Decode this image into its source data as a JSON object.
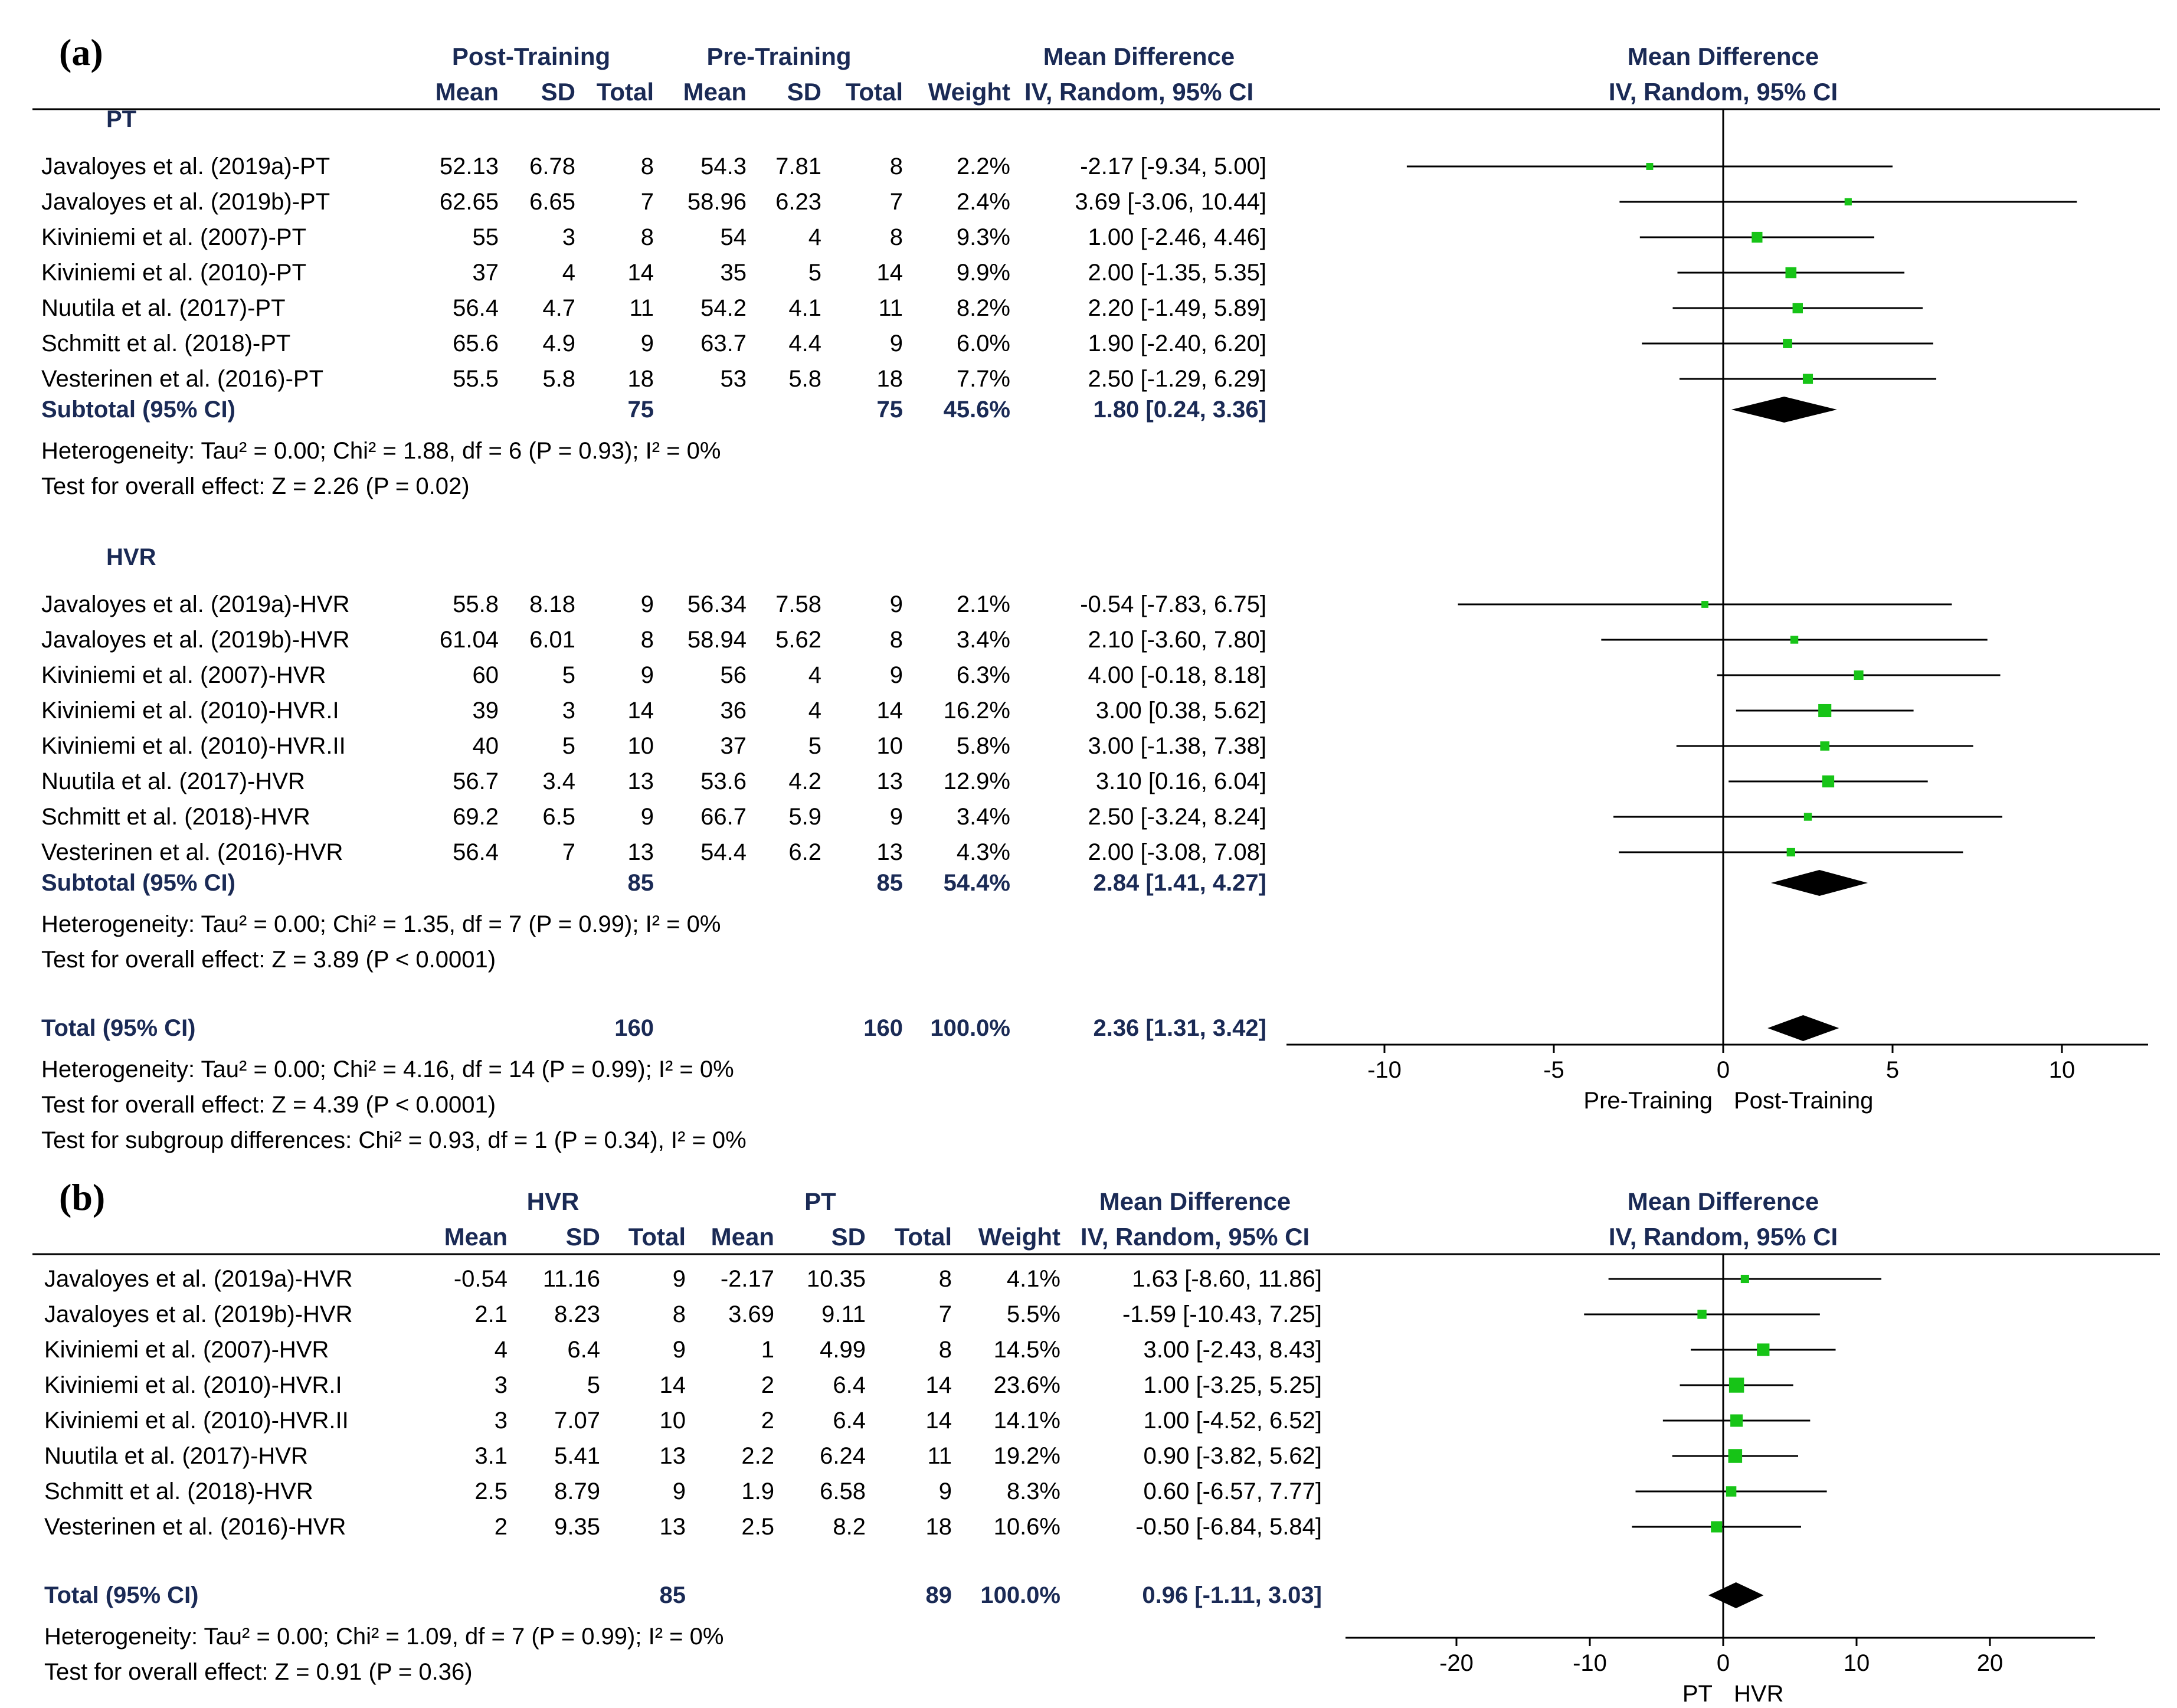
{
  "chart_data": [
    {
      "type": "forest",
      "panel_label": "(a)",
      "header": {
        "group1": "Post-Training",
        "group2": "Pre-Training",
        "col_mean": "Mean",
        "col_sd": "SD",
        "col_total": "Total",
        "col_weight": "Weight",
        "md_title": "Mean Difference",
        "md_method": "IV, Random, 95% CI"
      },
      "groups": [
        {
          "name": "PT",
          "studies": [
            {
              "study": "Javaloyes et al. (2019a)-PT",
              "m1": "52.13",
              "sd1": "6.78",
              "n1": "8",
              "m2": "54.3",
              "sd2": "7.81",
              "n2": "8",
              "weight": "2.2%",
              "ci_text": "-2.17 [-9.34, 5.00]",
              "md": -2.17,
              "lo": -9.34,
              "hi": 5.0,
              "w": 2.2
            },
            {
              "study": "Javaloyes et al. (2019b)-PT",
              "m1": "62.65",
              "sd1": "6.65",
              "n1": "7",
              "m2": "58.96",
              "sd2": "6.23",
              "n2": "7",
              "weight": "2.4%",
              "ci_text": "3.69 [-3.06, 10.44]",
              "md": 3.69,
              "lo": -3.06,
              "hi": 10.44,
              "w": 2.4
            },
            {
              "study": "Kiviniemi et al. (2007)-PT",
              "m1": "55",
              "sd1": "3",
              "n1": "8",
              "m2": "54",
              "sd2": "4",
              "n2": "8",
              "weight": "9.3%",
              "ci_text": "1.00 [-2.46, 4.46]",
              "md": 1.0,
              "lo": -2.46,
              "hi": 4.46,
              "w": 9.3
            },
            {
              "study": "Kiviniemi et al. (2010)-PT",
              "m1": "37",
              "sd1": "4",
              "n1": "14",
              "m2": "35",
              "sd2": "5",
              "n2": "14",
              "weight": "9.9%",
              "ci_text": "2.00 [-1.35, 5.35]",
              "md": 2.0,
              "lo": -1.35,
              "hi": 5.35,
              "w": 9.9
            },
            {
              "study": "Nuutila et al. (2017)-PT",
              "m1": "56.4",
              "sd1": "4.7",
              "n1": "11",
              "m2": "54.2",
              "sd2": "4.1",
              "n2": "11",
              "weight": "8.2%",
              "ci_text": "2.20 [-1.49, 5.89]",
              "md": 2.2,
              "lo": -1.49,
              "hi": 5.89,
              "w": 8.2
            },
            {
              "study": "Schmitt et al. (2018)-PT",
              "m1": "65.6",
              "sd1": "4.9",
              "n1": "9",
              "m2": "63.7",
              "sd2": "4.4",
              "n2": "9",
              "weight": "6.0%",
              "ci_text": "1.90 [-2.40, 6.20]",
              "md": 1.9,
              "lo": -2.4,
              "hi": 6.2,
              "w": 6.0
            },
            {
              "study": "Vesterinen et al. (2016)-PT",
              "m1": "55.5",
              "sd1": "5.8",
              "n1": "18",
              "m2": "53",
              "sd2": "5.8",
              "n2": "18",
              "weight": "7.7%",
              "ci_text": "2.50 [-1.29, 6.29]",
              "md": 2.5,
              "lo": -1.29,
              "hi": 6.29,
              "w": 7.7
            }
          ],
          "subtotal": {
            "label": "Subtotal (95% CI)",
            "n1": "75",
            "n2": "75",
            "weight": "45.6%",
            "ci_text": "1.80 [0.24, 3.36]",
            "md": 1.8,
            "lo": 0.24,
            "hi": 3.36
          },
          "heterogeneity": "Heterogeneity: Tau² = 0.00; Chi² = 1.88, df = 6 (P = 0.93); I² = 0%",
          "overall": "Test for overall effect: Z = 2.26 (P = 0.02)"
        },
        {
          "name": "HVR",
          "studies": [
            {
              "study": "Javaloyes et al. (2019a)-HVR",
              "m1": "55.8",
              "sd1": "8.18",
              "n1": "9",
              "m2": "56.34",
              "sd2": "7.58",
              "n2": "9",
              "weight": "2.1%",
              "ci_text": "-0.54 [-7.83, 6.75]",
              "md": -0.54,
              "lo": -7.83,
              "hi": 6.75,
              "w": 2.1
            },
            {
              "study": "Javaloyes et al. (2019b)-HVR",
              "m1": "61.04",
              "sd1": "6.01",
              "n1": "8",
              "m2": "58.94",
              "sd2": "5.62",
              "n2": "8",
              "weight": "3.4%",
              "ci_text": "2.10 [-3.60, 7.80]",
              "md": 2.1,
              "lo": -3.6,
              "hi": 7.8,
              "w": 3.4
            },
            {
              "study": "Kiviniemi et al. (2007)-HVR",
              "m1": "60",
              "sd1": "5",
              "n1": "9",
              "m2": "56",
              "sd2": "4",
              "n2": "9",
              "weight": "6.3%",
              "ci_text": "4.00 [-0.18, 8.18]",
              "md": 4.0,
              "lo": -0.18,
              "hi": 8.18,
              "w": 6.3
            },
            {
              "study": "Kiviniemi et al. (2010)-HVR.I",
              "m1": "39",
              "sd1": "3",
              "n1": "14",
              "m2": "36",
              "sd2": "4",
              "n2": "14",
              "weight": "16.2%",
              "ci_text": "3.00 [0.38, 5.62]",
              "md": 3.0,
              "lo": 0.38,
              "hi": 5.62,
              "w": 16.2
            },
            {
              "study": "Kiviniemi et al. (2010)-HVR.II",
              "m1": "40",
              "sd1": "5",
              "n1": "10",
              "m2": "37",
              "sd2": "5",
              "n2": "10",
              "weight": "5.8%",
              "ci_text": "3.00 [-1.38, 7.38]",
              "md": 3.0,
              "lo": -1.38,
              "hi": 7.38,
              "w": 5.8
            },
            {
              "study": "Nuutila et al. (2017)-HVR",
              "m1": "56.7",
              "sd1": "3.4",
              "n1": "13",
              "m2": "53.6",
              "sd2": "4.2",
              "n2": "13",
              "weight": "12.9%",
              "ci_text": "3.10 [0.16, 6.04]",
              "md": 3.1,
              "lo": 0.16,
              "hi": 6.04,
              "w": 12.9
            },
            {
              "study": "Schmitt et al. (2018)-HVR",
              "m1": "69.2",
              "sd1": "6.5",
              "n1": "9",
              "m2": "66.7",
              "sd2": "5.9",
              "n2": "9",
              "weight": "3.4%",
              "ci_text": "2.50 [-3.24, 8.24]",
              "md": 2.5,
              "lo": -3.24,
              "hi": 8.24,
              "w": 3.4
            },
            {
              "study": "Vesterinen et al. (2016)-HVR",
              "m1": "56.4",
              "sd1": "7",
              "n1": "13",
              "m2": "54.4",
              "sd2": "6.2",
              "n2": "13",
              "weight": "4.3%",
              "ci_text": "2.00 [-3.08, 7.08]",
              "md": 2.0,
              "lo": -3.08,
              "hi": 7.08,
              "w": 4.3
            }
          ],
          "subtotal": {
            "label": "Subtotal (95% CI)",
            "n1": "85",
            "n2": "85",
            "weight": "54.4%",
            "ci_text": "2.84 [1.41, 4.27]",
            "md": 2.84,
            "lo": 1.41,
            "hi": 4.27
          },
          "heterogeneity": "Heterogeneity: Tau² = 0.00; Chi² = 1.35, df = 7 (P = 0.99); I² = 0%",
          "overall": "Test for overall effect: Z = 3.89 (P < 0.0001)"
        }
      ],
      "total": {
        "label": "Total (95% CI)",
        "n1": "160",
        "n2": "160",
        "weight": "100.0%",
        "ci_text": "2.36 [1.31, 3.42]",
        "md": 2.36,
        "lo": 1.31,
        "hi": 3.42
      },
      "footer": [
        "Heterogeneity: Tau² = 0.00; Chi² = 4.16, df = 14 (P = 0.99); I² = 0%",
        "Test for overall effect: Z = 4.39 (P < 0.0001)",
        "Test for subgroup differences: Chi² = 0.93, df = 1 (P = 0.34), I² = 0%"
      ],
      "xlim": [
        -10,
        10
      ],
      "xticks": [
        -10,
        -5,
        0,
        5,
        10
      ],
      "favours_left": "Pre-Training",
      "favours_right": "Post-Training"
    },
    {
      "type": "forest",
      "panel_label": "(b)",
      "header": {
        "group1": "HVR",
        "group2": "PT",
        "col_mean": "Mean",
        "col_sd": "SD",
        "col_total": "Total",
        "col_weight": "Weight",
        "md_title": "Mean Difference",
        "md_method": "IV, Random, 95% CI"
      },
      "studies": [
        {
          "study": "Javaloyes et al. (2019a)-HVR",
          "m1": "-0.54",
          "sd1": "11.16",
          "n1": "9",
          "m2": "-2.17",
          "sd2": "10.35",
          "n2": "8",
          "weight": "4.1%",
          "ci_text": "1.63 [-8.60, 11.86]",
          "md": 1.63,
          "lo": -8.6,
          "hi": 11.86,
          "w": 4.1
        },
        {
          "study": "Javaloyes et al. (2019b)-HVR",
          "m1": "2.1",
          "sd1": "8.23",
          "n1": "8",
          "m2": "3.69",
          "sd2": "9.11",
          "n2": "7",
          "weight": "5.5%",
          "ci_text": "-1.59 [-10.43, 7.25]",
          "md": -1.59,
          "lo": -10.43,
          "hi": 7.25,
          "w": 5.5
        },
        {
          "study": "Kiviniemi et al. (2007)-HVR",
          "m1": "4",
          "sd1": "6.4",
          "n1": "9",
          "m2": "1",
          "sd2": "4.99",
          "n2": "8",
          "weight": "14.5%",
          "ci_text": "3.00 [-2.43, 8.43]",
          "md": 3.0,
          "lo": -2.43,
          "hi": 8.43,
          "w": 14.5
        },
        {
          "study": "Kiviniemi et al. (2010)-HVR.I",
          "m1": "3",
          "sd1": "5",
          "n1": "14",
          "m2": "2",
          "sd2": "6.4",
          "n2": "14",
          "weight": "23.6%",
          "ci_text": "1.00 [-3.25, 5.25]",
          "md": 1.0,
          "lo": -3.25,
          "hi": 5.25,
          "w": 23.6
        },
        {
          "study": "Kiviniemi et al. (2010)-HVR.II",
          "m1": "3",
          "sd1": "7.07",
          "n1": "10",
          "m2": "2",
          "sd2": "6.4",
          "n2": "14",
          "weight": "14.1%",
          "ci_text": "1.00 [-4.52, 6.52]",
          "md": 1.0,
          "lo": -4.52,
          "hi": 6.52,
          "w": 14.1
        },
        {
          "study": "Nuutila et al. (2017)-HVR",
          "m1": "3.1",
          "sd1": "5.41",
          "n1": "13",
          "m2": "2.2",
          "sd2": "6.24",
          "n2": "11",
          "weight": "19.2%",
          "ci_text": "0.90 [-3.82, 5.62]",
          "md": 0.9,
          "lo": -3.82,
          "hi": 5.62,
          "w": 19.2
        },
        {
          "study": "Schmitt et al. (2018)-HVR",
          "m1": "2.5",
          "sd1": "8.79",
          "n1": "9",
          "m2": "1.9",
          "sd2": "6.58",
          "n2": "9",
          "weight": "8.3%",
          "ci_text": "0.60 [-6.57, 7.77]",
          "md": 0.6,
          "lo": -6.57,
          "hi": 7.77,
          "w": 8.3
        },
        {
          "study": "Vesterinen et al. (2016)-HVR",
          "m1": "2",
          "sd1": "9.35",
          "n1": "13",
          "m2": "2.5",
          "sd2": "8.2",
          "n2": "18",
          "weight": "10.6%",
          "ci_text": "-0.50 [-6.84, 5.84]",
          "md": -0.5,
          "lo": -6.84,
          "hi": 5.84,
          "w": 10.6
        }
      ],
      "total": {
        "label": "Total (95% CI)",
        "n1": "85",
        "n2": "89",
        "weight": "100.0%",
        "ci_text": "0.96 [-1.11, 3.03]",
        "md": 0.96,
        "lo": -1.11,
        "hi": 3.03
      },
      "footer": [
        "Heterogeneity: Tau² = 0.00; Chi² = 1.09, df = 7 (P = 0.99); I² = 0%",
        "Test for overall effect: Z = 0.91 (P = 0.36)"
      ],
      "xlim": [
        -20,
        20
      ],
      "xticks": [
        -20,
        -10,
        0,
        10,
        20
      ],
      "favours_left": "PT",
      "favours_right": "HVR"
    }
  ],
  "colors": {
    "marker": "#17c417",
    "diamond": "#000000",
    "text": "#000000",
    "header": "#1a2a55"
  }
}
